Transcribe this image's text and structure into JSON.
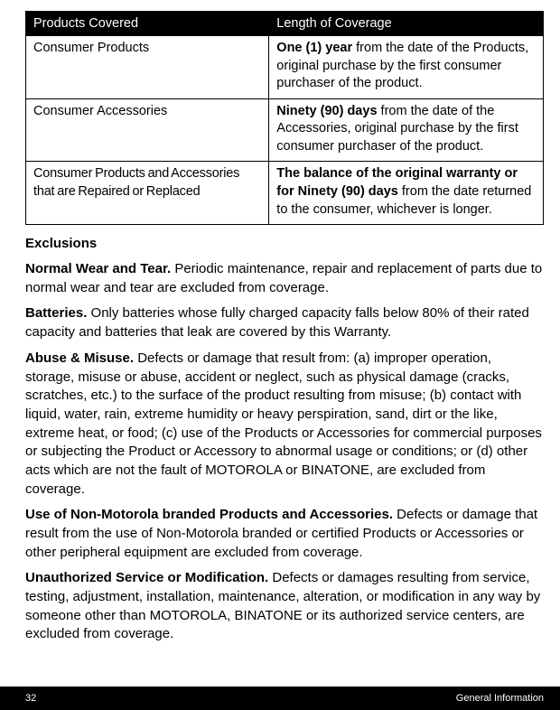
{
  "table": {
    "headers": {
      "a": "Products Covered",
      "b": "Length of Coverage"
    },
    "rows": [
      {
        "a": "Consumer Products",
        "b_bold": "One (1) year",
        "b_rest": " from the date of the Products, original purchase by the first consumer purchaser of the product."
      },
      {
        "a": "Consumer Accessories",
        "b_bold": "Ninety (90) days",
        "b_rest": " from the date of the Accessories, original purchase by the first consumer purchaser of the product."
      },
      {
        "a": "Consumer Products and Accessories that are Repaired or Replaced",
        "b_bold": "The balance of the original warranty or for Ninety (90) days",
        "b_rest": " from the date returned to the consumer, whichever is longer."
      }
    ]
  },
  "exclusions_heading": "Exclusions",
  "paragraphs": [
    {
      "lead": "Normal Wear and Tear.",
      "text": " Periodic maintenance, repair and replacement of parts due to normal wear and tear are excluded from coverage."
    },
    {
      "lead": "Batteries.",
      "text": " Only batteries whose fully charged capacity falls below 80% of their rated capacity and batteries that leak are covered by this Warranty."
    },
    {
      "lead": "Abuse & Misuse.",
      "text": " Defects or damage that result from: (a) improper operation, storage, misuse or abuse, accident or neglect, such as physical damage (cracks, scratches, etc.) to the surface of the product resulting from misuse; (b) contact with liquid, water, rain, extreme humidity or heavy perspiration, sand, dirt or the like, extreme heat, or food; (c) use of the Products or Accessories for commercial purposes or subjecting the Product or Accessory to abnormal usage or conditions; or (d) other acts which are not the fault of MOTOROLA or BINATONE, are excluded from coverage."
    },
    {
      "lead": "Use of Non-Motorola branded Products and Accessories.",
      "text": " Defects or damage that result from the use of Non-Motorola branded or certified Products or Accessories or other peripheral equipment are excluded from coverage."
    },
    {
      "lead": "Unauthorized Service or Modification.",
      "text": " Defects or damages resulting from service, testing, adjustment, installation, maintenance, alteration, or modification in any way by someone other than MOTOROLA, BINATONE or its authorized service centers, are excluded from coverage."
    }
  ],
  "footer": {
    "page": "32",
    "section": "General Information"
  }
}
